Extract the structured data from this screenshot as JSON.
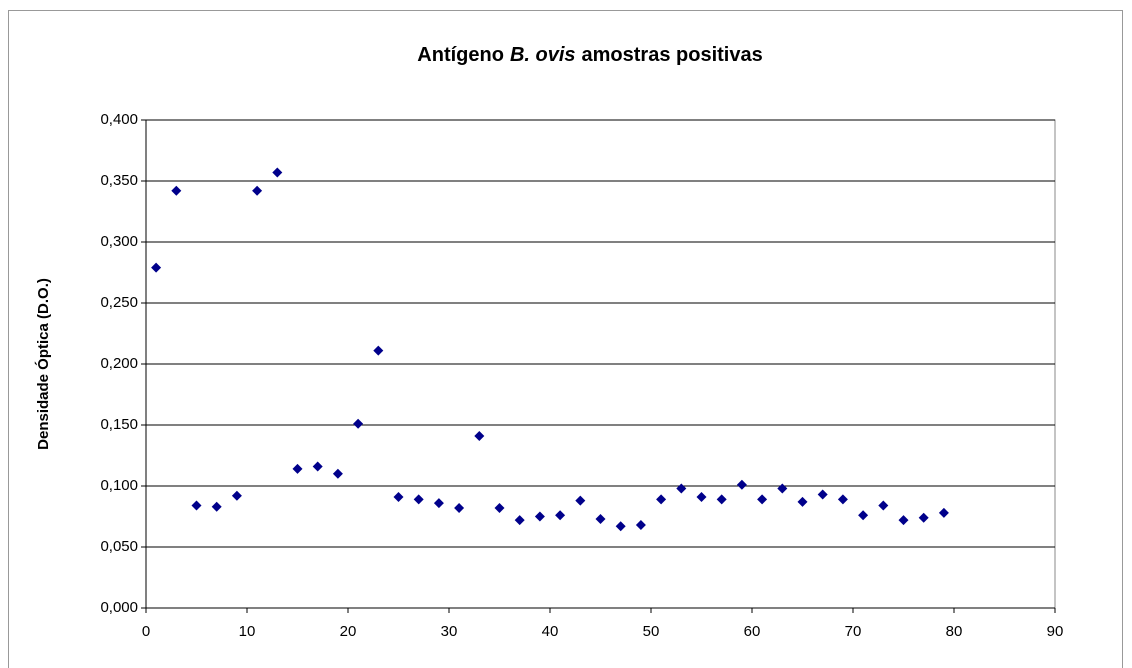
{
  "chart_data": {
    "type": "scatter",
    "title": [
      "Antígeno",
      "B. ovis",
      "amostras positivas"
    ],
    "y_label": "Densidade Óptica (D.O.)",
    "x": [
      1,
      3,
      5,
      7,
      9,
      11,
      13,
      15,
      17,
      19,
      21,
      23,
      25,
      27,
      29,
      31,
      33,
      35,
      37,
      39,
      41,
      43,
      45,
      47,
      49,
      51,
      53,
      55,
      57,
      59,
      61,
      63,
      65,
      67,
      69,
      71,
      73,
      75,
      77,
      79
    ],
    "series": [
      {
        "color": "#00008b",
        "values": [
          0.279,
          0.342,
          0.084,
          0.083,
          0.092,
          0.342,
          0.357,
          0.114,
          0.116,
          0.11,
          0.151,
          0.211,
          0.091,
          0.089,
          0.086,
          0.082,
          0.141,
          0.082,
          0.072,
          0.075,
          0.076,
          0.088,
          0.073,
          0.067,
          0.068,
          0.089,
          0.098,
          0.091,
          0.089,
          0.101,
          0.089,
          0.098,
          0.087,
          0.093,
          0.089,
          0.076,
          0.084,
          0.072,
          0.074,
          0.078
        ]
      }
    ],
    "xlim": [
      0,
      90
    ],
    "xticks": [
      0,
      10,
      20,
      30,
      40,
      50,
      60,
      70,
      80,
      90
    ],
    "ylim": [
      0,
      0.4
    ],
    "yticks": [
      {
        "value": 0,
        "label": "0,000"
      },
      {
        "value": 0.05,
        "label": "0,050"
      },
      {
        "value": 0.1,
        "label": "0,100"
      },
      {
        "value": 0.15,
        "label": "0,150"
      },
      {
        "value": 0.2,
        "label": "0,200"
      },
      {
        "value": 0.25,
        "label": "0,250"
      },
      {
        "value": 0.3,
        "label": "0,300"
      },
      {
        "value": 0.35,
        "label": "0,350"
      },
      {
        "value": 0.4,
        "label": "0,400"
      }
    ],
    "grid": true
  }
}
